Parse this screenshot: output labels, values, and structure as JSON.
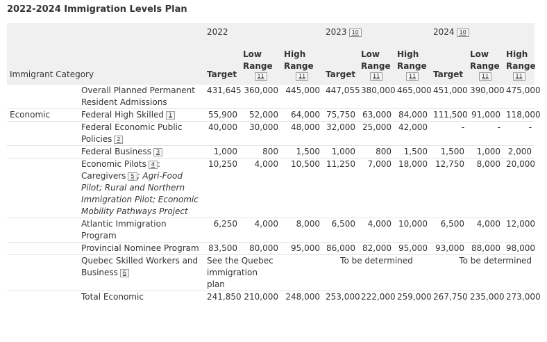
{
  "title": "2022-2024 Immigration Levels Plan",
  "header": {
    "category_label": "Immigrant Category",
    "years": [
      {
        "year": "2022",
        "fn": ""
      },
      {
        "year": "2023",
        "fn": "10"
      },
      {
        "year": "2024",
        "fn": "10"
      }
    ],
    "target_label": "Target",
    "low_label": "Low Range",
    "high_label": "High Range",
    "range_fn": "11"
  },
  "overall": {
    "label": "Overall Planned Permanent Resident Admissions",
    "values": [
      "431,645",
      "360,000",
      "445,000",
      "447,055",
      "380,000",
      "465,000",
      "451,000",
      "390,000",
      "475,000"
    ]
  },
  "economic": {
    "category": "Economic",
    "rows": [
      {
        "label": "Federal High Skilled",
        "fn": "1",
        "values": [
          "55,900",
          "52,000",
          "64,000",
          "75,750",
          "63,000",
          "84,000",
          "111,500",
          "91,000",
          "118,000"
        ]
      },
      {
        "label": "Federal Economic Public Policies",
        "fn": "2",
        "values": [
          "40,000",
          "30,000",
          "48,000",
          "32,000",
          "25,000",
          "42,000",
          "-",
          "-",
          "-"
        ]
      },
      {
        "label": "Federal Business",
        "fn": "3",
        "values": [
          "1,000",
          "800",
          "1,500",
          "1,000",
          "800",
          "1,500",
          "1,500",
          "1,000",
          "2,000"
        ]
      },
      {
        "label_parts": [
          "Economic Pilots",
          "4",
          ": Caregivers",
          "5",
          "; Agri-Food Pilot; Rural and Northern Immigration Pilot; Economic Mobility Pathways Project"
        ],
        "values": [
          "10,250",
          "4,000",
          "10,500",
          "11,250",
          "7,000",
          "18,000",
          "12,750",
          "8,000",
          "20,000"
        ]
      },
      {
        "label": "Atlantic Immigration Program",
        "fn": "",
        "values": [
          "6,250",
          "4,000",
          "8,000",
          "6,500",
          "4,000",
          "10,000",
          "6,500",
          "4,000",
          "12,000"
        ]
      },
      {
        "label": "Provincial Nominee Program",
        "fn": "",
        "values": [
          "83,500",
          "80,000",
          "95,000",
          "86,000",
          "82,000",
          "95,000",
          "93,000",
          "88,000",
          "98,000"
        ]
      }
    ],
    "quebec": {
      "label": "Quebec Skilled Workers and Business",
      "fn": "6",
      "text_2022_a": "See the Quebec immigration",
      "text_2022_b": "plan",
      "text_2023": "To be determined",
      "text_2024": "To be determined"
    },
    "total": {
      "label": "Total Economic",
      "values": [
        "241,850",
        "210,000",
        "248,000",
        "253,000",
        "222,000",
        "259,000",
        "267,750",
        "235,000",
        "273,000"
      ]
    }
  }
}
